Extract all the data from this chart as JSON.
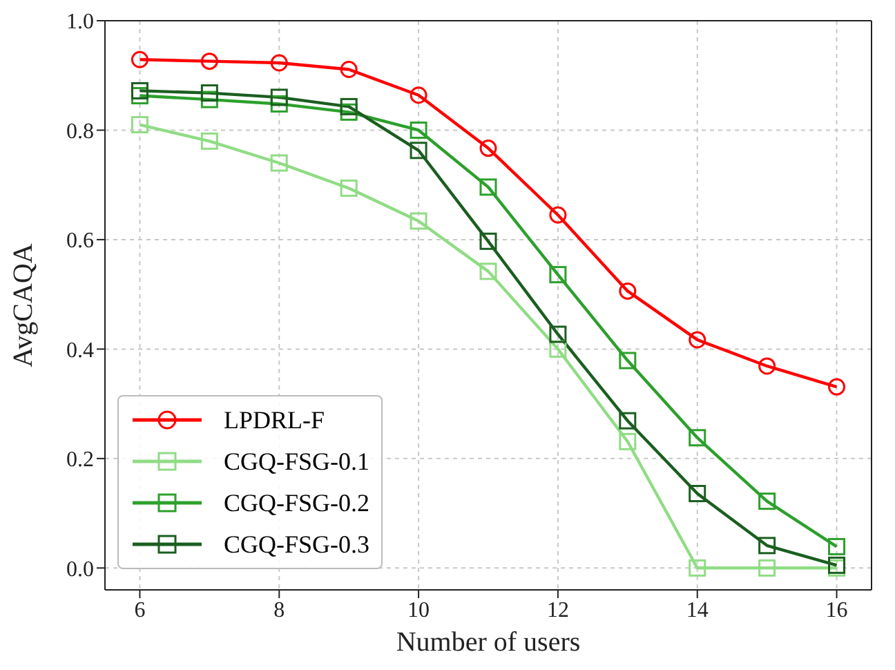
{
  "chart_data": {
    "type": "line",
    "xlabel": "Number of users",
    "ylabel": "AvgCAQA",
    "x": [
      6,
      7,
      8,
      9,
      10,
      11,
      12,
      13,
      14,
      15,
      16
    ],
    "series": [
      {
        "name": "LPDRL-F",
        "color": "#ff0000",
        "marker": "circle",
        "values": [
          0.929,
          0.926,
          0.923,
          0.911,
          0.864,
          0.767,
          0.645,
          0.506,
          0.417,
          0.369,
          0.331
        ]
      },
      {
        "name": "CGQ-FSG-0.1",
        "color": "#90dc85",
        "marker": "square",
        "values": [
          0.81,
          0.78,
          0.74,
          0.694,
          0.634,
          0.542,
          0.4,
          0.231,
          0,
          0,
          0
        ]
      },
      {
        "name": "CGQ-FSG-0.2",
        "color": "#2ca02c",
        "marker": "square",
        "values": [
          0.863,
          0.856,
          0.848,
          0.833,
          0.8,
          0.696,
          0.536,
          0.379,
          0.238,
          0.122,
          0.039
        ]
      },
      {
        "name": "CGQ-FSG-0.3",
        "color": "#1b5e20",
        "marker": "square",
        "values": [
          0.872,
          0.868,
          0.86,
          0.843,
          0.763,
          0.597,
          0.427,
          0.269,
          0.136,
          0.041,
          0.005
        ]
      }
    ],
    "xlim": [
      5.5,
      16.5
    ],
    "xticks": [
      6,
      8,
      10,
      12,
      14,
      16
    ],
    "ylim": [
      -0.04,
      1.0
    ],
    "yticks": [
      {
        "value": 0,
        "label": "0.0"
      },
      0.2,
      0.4,
      0.6,
      0.8,
      {
        "value": 1,
        "label": "1.0"
      }
    ],
    "grid": true,
    "legend": "bottom left",
    "line_style": "solid"
  }
}
